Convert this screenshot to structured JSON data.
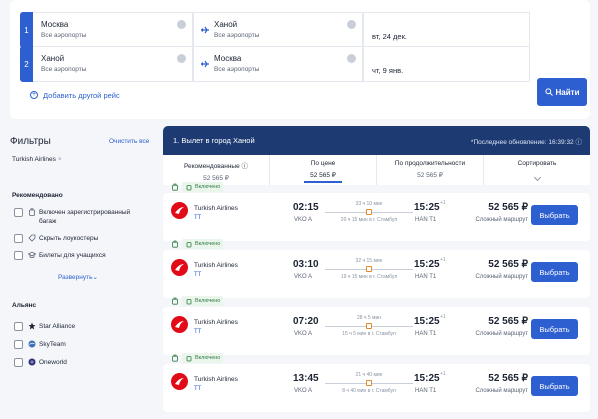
{
  "search": {
    "routes": [
      {
        "num": "1",
        "from_city": "Москва",
        "from_sub": "Все аэропорты",
        "to_city": "Ханой",
        "to_sub": "Все аэропорты",
        "date": "вт, 24 дек."
      },
      {
        "num": "2",
        "from_city": "Ханой",
        "from_sub": "Все аэропорты",
        "to_city": "Москва",
        "to_sub": "Все аэропорты",
        "date": "чт, 9 янв."
      }
    ],
    "add_route_label": "Добавить другой рейс",
    "search_button_label": "Найти"
  },
  "filters": {
    "title": "Фильтры",
    "clear_all": "Очистить все",
    "chip": "Turkish Airlines",
    "recommended_title": "Рекомендовано",
    "recommended_options": [
      "Включен зарегистрированный багаж",
      "Скрыть лоукостеры",
      "Билеты для учащихся"
    ],
    "expand_label": "Развернуть",
    "alliance_title": "Альянс",
    "alliances": [
      "Star Alliance",
      "SkyTeam",
      "Oneworld"
    ]
  },
  "results": {
    "header_title": "1. Вылет в город Ханой",
    "last_update": "*Последнее обновление: 16:39:32",
    "sort_tabs": [
      {
        "label": "Рекомендованные",
        "value": "52 565 ₽"
      },
      {
        "label": "По цене",
        "value": "52 565 ₽"
      },
      {
        "label": "По продолжительности",
        "value": "52 565 ₽"
      },
      {
        "label": "Сортировать",
        "value": ""
      }
    ],
    "flights": [
      {
        "badge": "Включено",
        "airline": "Turkish Airlines",
        "code": "TT",
        "dep_time": "02:15",
        "dep_airport": "VKO A",
        "duration": "33 ч 10 мин",
        "layover": "20 ч 15 мин в г. Стамбул",
        "arr_time": "15:25",
        "day_offset": "+1",
        "arr_airport": "HAN T1",
        "price": "52 565 ₽",
        "route_type": "Сложный маршрут",
        "select_label": "Выбрать"
      },
      {
        "badge": "Включено",
        "airline": "Turkish Airlines",
        "code": "TT",
        "dep_time": "03:10",
        "dep_airport": "VKO A",
        "duration": "32 ч 15 мин",
        "layover": "19 ч 15 мин в г. Стамбул",
        "arr_time": "15:25",
        "day_offset": "+1",
        "arr_airport": "HAN T1",
        "price": "52 565 ₽",
        "route_type": "Сложный маршрут",
        "select_label": "Выбрать"
      },
      {
        "badge": "Включено",
        "airline": "Turkish Airlines",
        "code": "TT",
        "dep_time": "07:20",
        "dep_airport": "VKO A",
        "duration": "28 ч 5 мин",
        "layover": "15 ч 5 мин в г. Стамбул",
        "arr_time": "15:25",
        "day_offset": "+1",
        "arr_airport": "HAN T1",
        "price": "52 565 ₽",
        "route_type": "Сложный маршрут",
        "select_label": "Выбрать"
      },
      {
        "badge": "Включено",
        "airline": "Turkish Airlines",
        "code": "TT",
        "dep_time": "13:45",
        "dep_airport": "VKO A",
        "duration": "21 ч 40 мин",
        "layover": "8 ч 40 мин в г. Стамбул",
        "arr_time": "15:25",
        "day_offset": "+1",
        "arr_airport": "HAN T1",
        "price": "52 565 ₽",
        "route_type": "Сложный маршрут",
        "select_label": "Выбрать"
      }
    ]
  },
  "colors": {
    "accent": "#2d5fd0",
    "header": "#1d3b72",
    "airline_red": "#e30a17"
  }
}
